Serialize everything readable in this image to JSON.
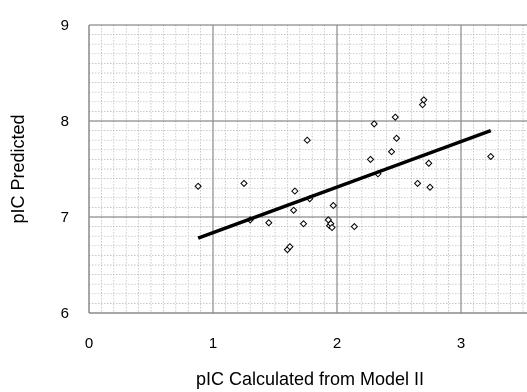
{
  "chart_data": {
    "type": "scatter",
    "title": "",
    "xlabel": "pIC Calculated from Model II",
    "ylabel": "pIC Predicted",
    "xlim": [
      0,
      3.5
    ],
    "ylim": [
      6,
      9
    ],
    "xticks": [
      0,
      1,
      2,
      3
    ],
    "yticks": [
      6,
      7,
      8,
      9
    ],
    "grid": true,
    "marker": "diamond-open",
    "series": [
      {
        "x": [
          0.88,
          1.25,
          1.3,
          1.45,
          1.6,
          1.62,
          1.65,
          1.66,
          1.73,
          1.76,
          1.78,
          1.93,
          1.94,
          1.95,
          1.96,
          1.97,
          2.14,
          2.27,
          2.3,
          2.33,
          2.44,
          2.47,
          2.48,
          2.65,
          2.69,
          2.7,
          2.74,
          2.75,
          3.24
        ],
        "y": [
          7.32,
          7.35,
          6.97,
          6.94,
          6.66,
          6.69,
          7.07,
          7.27,
          6.93,
          7.8,
          7.19,
          6.97,
          6.91,
          6.93,
          6.89,
          7.12,
          6.9,
          7.6,
          7.97,
          7.45,
          7.68,
          8.04,
          7.82,
          7.35,
          8.17,
          8.22,
          7.56,
          7.31,
          7.63
        ]
      }
    ],
    "trendline": {
      "x": [
        0.88,
        3.24
      ],
      "y": [
        6.78,
        7.9
      ]
    }
  }
}
